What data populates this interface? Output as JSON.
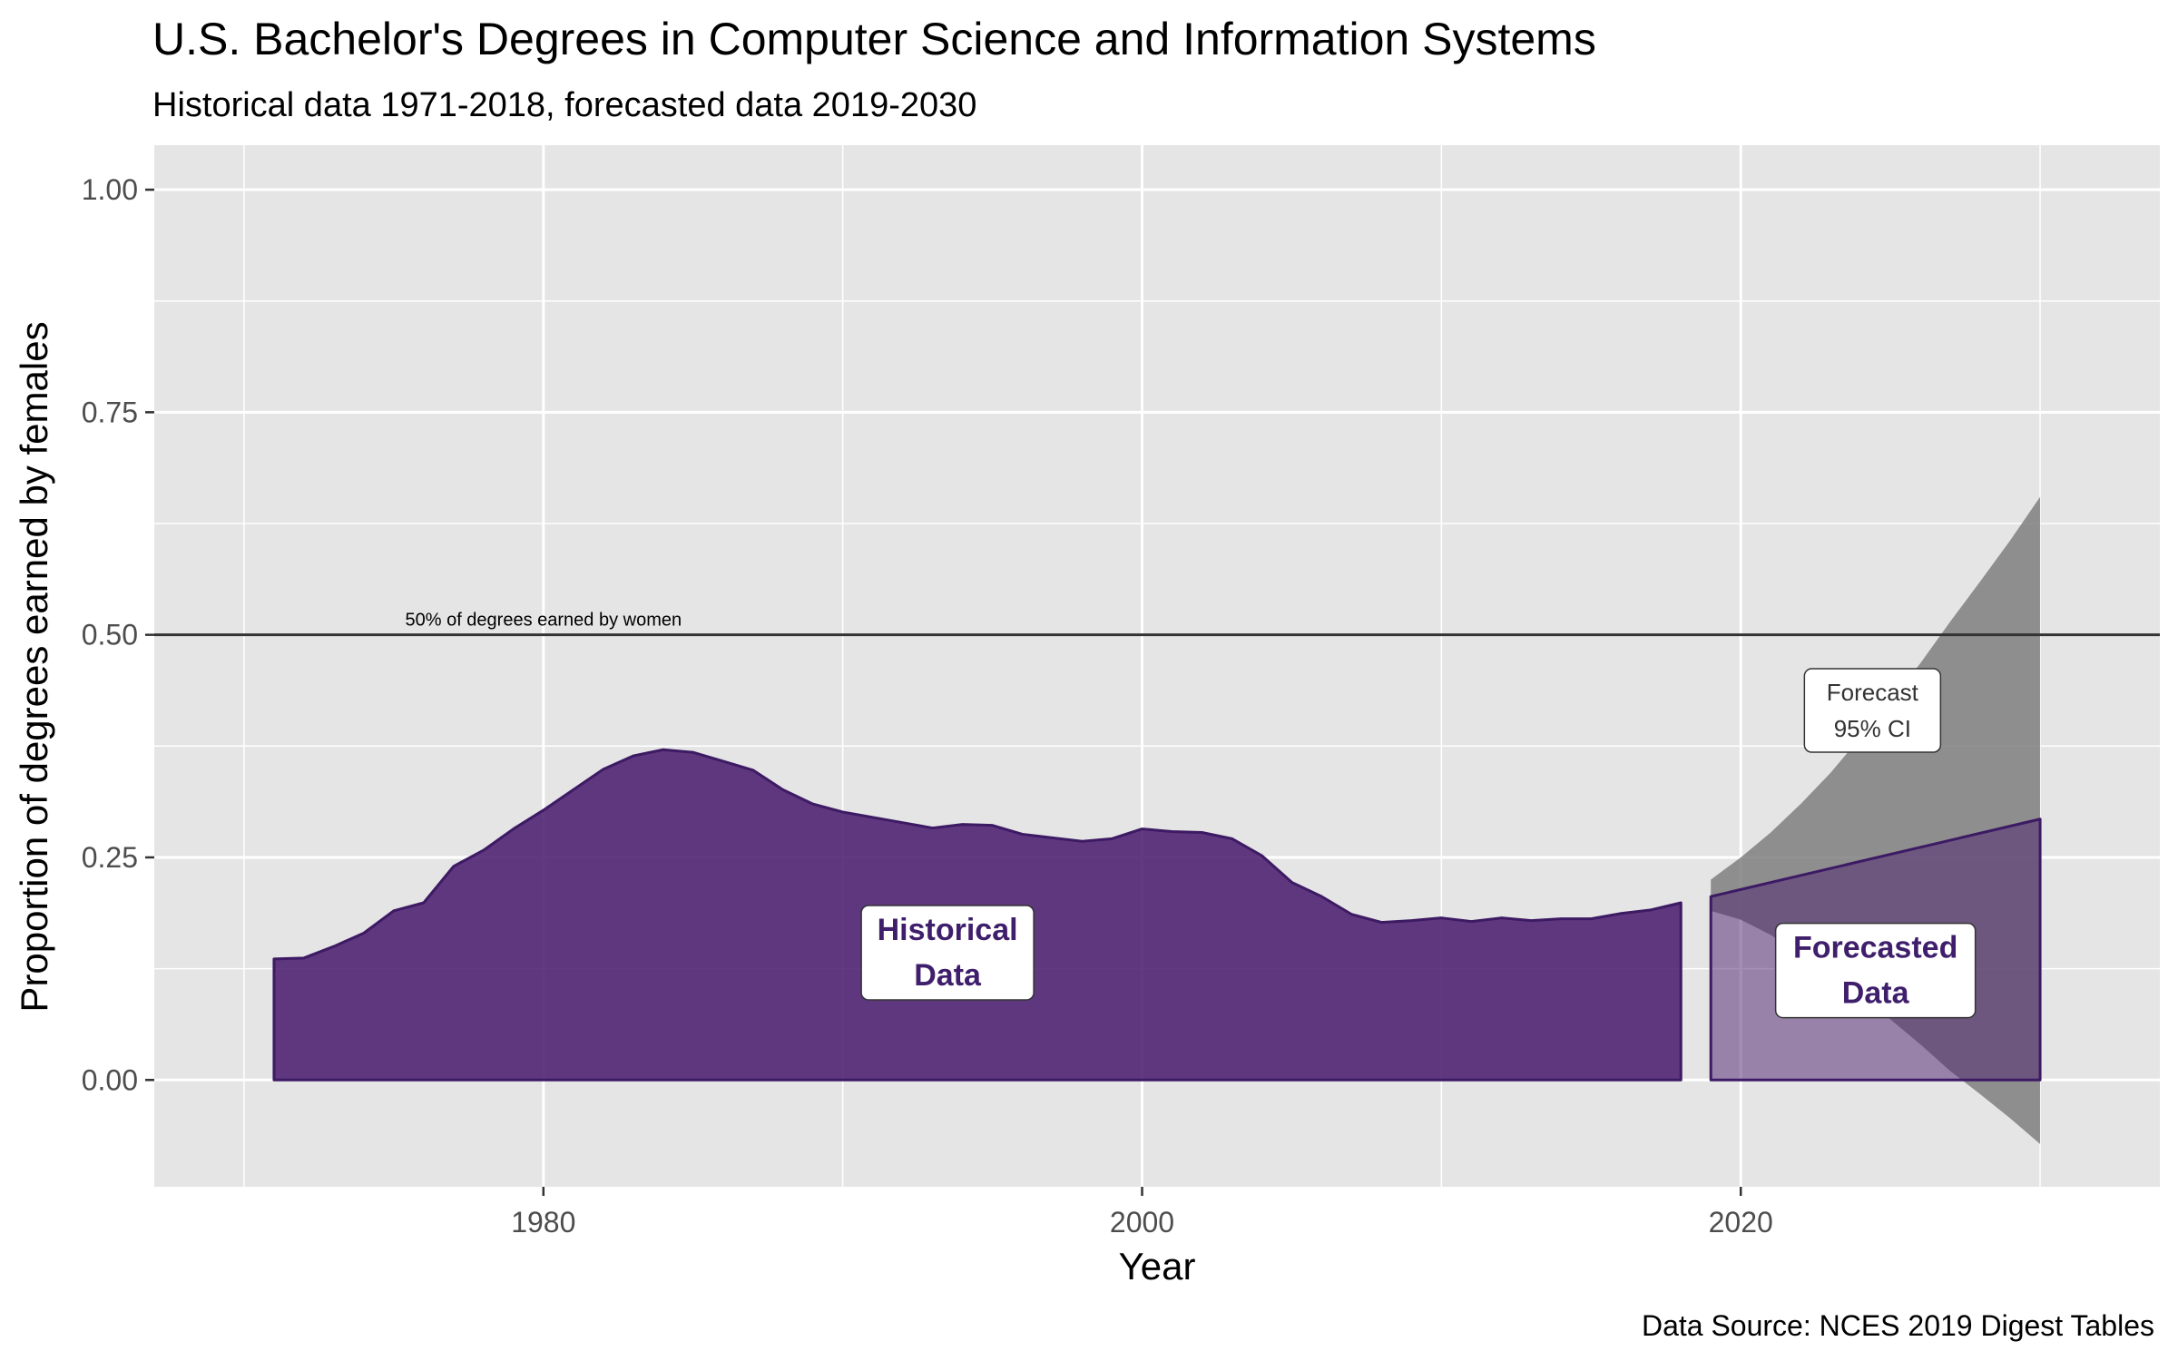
{
  "chart_data": {
    "type": "area",
    "title": "U.S. Bachelor's Degrees in Computer Science and Information Systems",
    "subtitle": "Historical data 1971-2018, forecasted data 2019-2030",
    "xlabel": "Year",
    "ylabel": "Proportion of degrees earned by females",
    "caption": "Data Source: NCES 2019 Digest Tables",
    "xlim": [
      1967,
      2034
    ],
    "ylim": [
      -0.12,
      1.05
    ],
    "x_ticks": [
      1980,
      2000,
      2020
    ],
    "y_ticks": [
      0.0,
      0.25,
      0.5,
      0.75,
      1.0
    ],
    "y_tick_labels": [
      "0.00",
      "0.25",
      "0.50",
      "0.75",
      "1.00"
    ],
    "grid": true,
    "colors": {
      "panel": "#e5e5e5",
      "grid": "#ffffff",
      "historical_fill": "#4b1f6f",
      "historical_outline": "#3d1a64",
      "forecast_fill": "#7b5b95",
      "ci_fill": "#7f7f7f",
      "reference_line": "#333333",
      "annotation_text": "#3f1f6b"
    },
    "reference_line": {
      "y": 0.5,
      "label": "50% of degrees earned by women"
    },
    "historical": {
      "name": "Historical Data",
      "x": [
        1971,
        1972,
        1973,
        1974,
        1975,
        1976,
        1977,
        1978,
        1979,
        1980,
        1981,
        1982,
        1983,
        1984,
        1985,
        1986,
        1987,
        1988,
        1989,
        1990,
        1991,
        1992,
        1993,
        1994,
        1995,
        1996,
        1997,
        1998,
        1999,
        2000,
        2001,
        2002,
        2003,
        2004,
        2005,
        2006,
        2007,
        2008,
        2009,
        2010,
        2011,
        2012,
        2013,
        2014,
        2015,
        2016,
        2017,
        2018
      ],
      "y": [
        0.136,
        0.137,
        0.15,
        0.165,
        0.19,
        0.199,
        0.24,
        0.258,
        0.282,
        0.303,
        0.326,
        0.349,
        0.364,
        0.371,
        0.368,
        0.358,
        0.348,
        0.326,
        0.31,
        0.301,
        0.295,
        0.289,
        0.283,
        0.287,
        0.286,
        0.276,
        0.272,
        0.268,
        0.271,
        0.282,
        0.279,
        0.278,
        0.271,
        0.252,
        0.222,
        0.206,
        0.186,
        0.177,
        0.179,
        0.182,
        0.178,
        0.182,
        0.179,
        0.181,
        0.181,
        0.187,
        0.191,
        0.199
      ]
    },
    "forecast": {
      "name": "Forecasted Data",
      "x": [
        2019,
        2030
      ],
      "y": [
        0.206,
        0.293
      ]
    },
    "forecast_ci": {
      "label": "Forecast 95% CI",
      "x": [
        2019,
        2020,
        2021,
        2022,
        2023,
        2024,
        2025,
        2026,
        2027,
        2028,
        2029,
        2030
      ],
      "upper": [
        0.225,
        0.25,
        0.278,
        0.31,
        0.345,
        0.385,
        0.425,
        0.468,
        0.515,
        0.56,
        0.606,
        0.655
      ],
      "lower": [
        0.19,
        0.18,
        0.163,
        0.141,
        0.118,
        0.095,
        0.068,
        0.04,
        0.01,
        -0.016,
        -0.043,
        -0.072
      ]
    },
    "annotations": {
      "historical_label": [
        "Historical",
        "Data"
      ],
      "forecast_label": [
        "Forecasted",
        "Data"
      ],
      "ci_label": [
        "Forecast",
        "95% CI"
      ]
    }
  }
}
